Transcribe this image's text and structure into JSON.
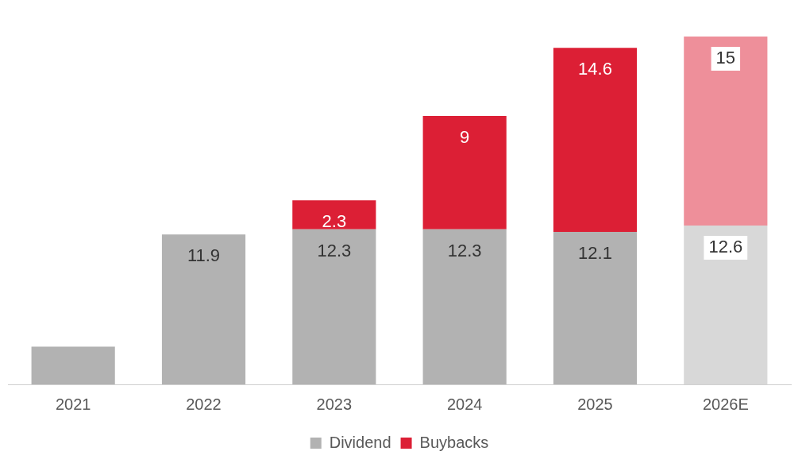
{
  "chart_data": {
    "type": "bar",
    "stacked": true,
    "categories": [
      "2021",
      "2022",
      "2023",
      "2024",
      "2025",
      "2026E"
    ],
    "series": [
      {
        "name": "Dividend",
        "color": "#b2b2b2",
        "colors": [
          "#b2b2b2",
          "#b2b2b2",
          "#b2b2b2",
          "#b2b2b2",
          "#b2b2b2",
          "#d8d8d8"
        ],
        "values": [
          3.0,
          11.9,
          12.3,
          12.3,
          12.1,
          12.6
        ],
        "value_labels": [
          null,
          "11.9",
          "12.3",
          "12.3",
          "12.1",
          "12.6"
        ]
      },
      {
        "name": "Buybacks",
        "color": "#dc1f35",
        "colors": [
          "#dc1f35",
          "#dc1f35",
          "#dc1f35",
          "#dc1f35",
          "#dc1f35",
          "#ee8f9a"
        ],
        "values": [
          null,
          null,
          2.3,
          9,
          14.6,
          15
        ],
        "value_labels": [
          null,
          null,
          "2.3",
          "9",
          "14.6",
          "15"
        ]
      }
    ],
    "grid": false,
    "legend": "bottom"
  }
}
